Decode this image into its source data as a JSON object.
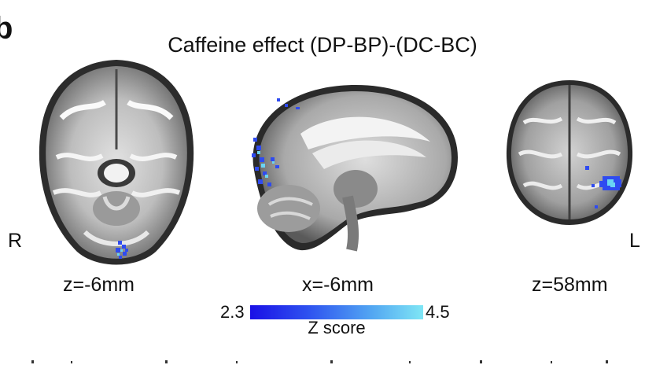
{
  "panel": {
    "letter": "b",
    "title": "Caffeine effect (DP-BP)-(DC-BC)"
  },
  "orientation": {
    "right": "R",
    "left": "L"
  },
  "slices": [
    {
      "label": "z=-6mm"
    },
    {
      "label": "x=-6mm"
    },
    {
      "label": "z=58mm"
    }
  ],
  "colorbar": {
    "min": "2.3",
    "max": "4.5",
    "title": "Z score",
    "colors": {
      "low": "#1a10e6",
      "high": "#7fe6f5"
    }
  }
}
